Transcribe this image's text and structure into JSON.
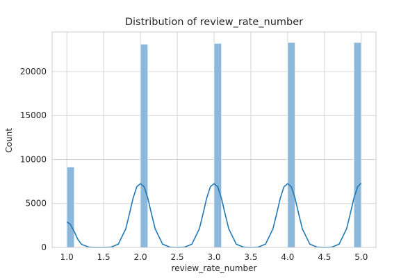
{
  "chart_data": {
    "type": "bar",
    "title": "Distribution of review_rate_number",
    "xlabel": "review_rate_number",
    "ylabel": "Count",
    "xlim": [
      0.8,
      5.2
    ],
    "ylim": [
      0,
      24500
    ],
    "grid": true,
    "xticks": [
      {
        "value": 1.0,
        "label": "1.0"
      },
      {
        "value": 1.5,
        "label": "1.5"
      },
      {
        "value": 2.0,
        "label": "2.0"
      },
      {
        "value": 2.5,
        "label": "2.5"
      },
      {
        "value": 3.0,
        "label": "3.0"
      },
      {
        "value": 3.5,
        "label": "3.5"
      },
      {
        "value": 4.0,
        "label": "4.0"
      },
      {
        "value": 4.5,
        "label": "4.5"
      },
      {
        "value": 5.0,
        "label": "5.0"
      }
    ],
    "yticks": [
      {
        "value": 0,
        "label": "0"
      },
      {
        "value": 5000,
        "label": "5000"
      },
      {
        "value": 10000,
        "label": "10000"
      },
      {
        "value": 15000,
        "label": "15000"
      },
      {
        "value": 20000,
        "label": "20000"
      }
    ],
    "bars": [
      {
        "x0": 1.0,
        "x1": 1.1,
        "value": 9150
      },
      {
        "x0": 1.9,
        "x1": 2.0,
        "value": 0
      },
      {
        "x0": 2.0,
        "x1": 2.1,
        "value": 23100
      },
      {
        "x0": 3.0,
        "x1": 3.1,
        "value": 23200
      },
      {
        "x0": 4.0,
        "x1": 4.1,
        "value": 23300
      },
      {
        "x0": 4.9,
        "x1": 5.0,
        "value": 23300
      }
    ],
    "kde": {
      "x": [
        1.0,
        1.05,
        1.1,
        1.15,
        1.2,
        1.3,
        1.4,
        1.5,
        1.6,
        1.7,
        1.8,
        1.85,
        1.9,
        1.95,
        2.0,
        2.05,
        2.1,
        2.15,
        2.2,
        2.3,
        2.4,
        2.5,
        2.6,
        2.7,
        2.8,
        2.85,
        2.9,
        2.95,
        3.0,
        3.05,
        3.1,
        3.15,
        3.2,
        3.3,
        3.4,
        3.5,
        3.6,
        3.7,
        3.8,
        3.85,
        3.9,
        3.95,
        4.0,
        4.05,
        4.1,
        4.15,
        4.2,
        4.3,
        4.4,
        4.5,
        4.6,
        4.7,
        4.8,
        4.85,
        4.9,
        4.95,
        5.0
      ],
      "y": [
        2900,
        2600,
        1800,
        900,
        350,
        30,
        0,
        0,
        30,
        380,
        2100,
        3800,
        5600,
        6900,
        7250,
        6900,
        5600,
        3800,
        2100,
        380,
        30,
        0,
        30,
        380,
        2100,
        3800,
        5600,
        6900,
        7250,
        6900,
        5600,
        3800,
        2100,
        380,
        30,
        0,
        30,
        380,
        2100,
        3800,
        5600,
        6900,
        7250,
        6900,
        5600,
        3800,
        2100,
        380,
        30,
        0,
        30,
        380,
        2100,
        3800,
        5600,
        6900,
        7300
      ]
    },
    "colors": {
      "bar": "#8cb9db",
      "bar_edge": "#ffffff",
      "kde_line": "#1f77b4",
      "grid": "#d4d4d4",
      "spine": "#cccccc",
      "text": "#262626"
    }
  }
}
